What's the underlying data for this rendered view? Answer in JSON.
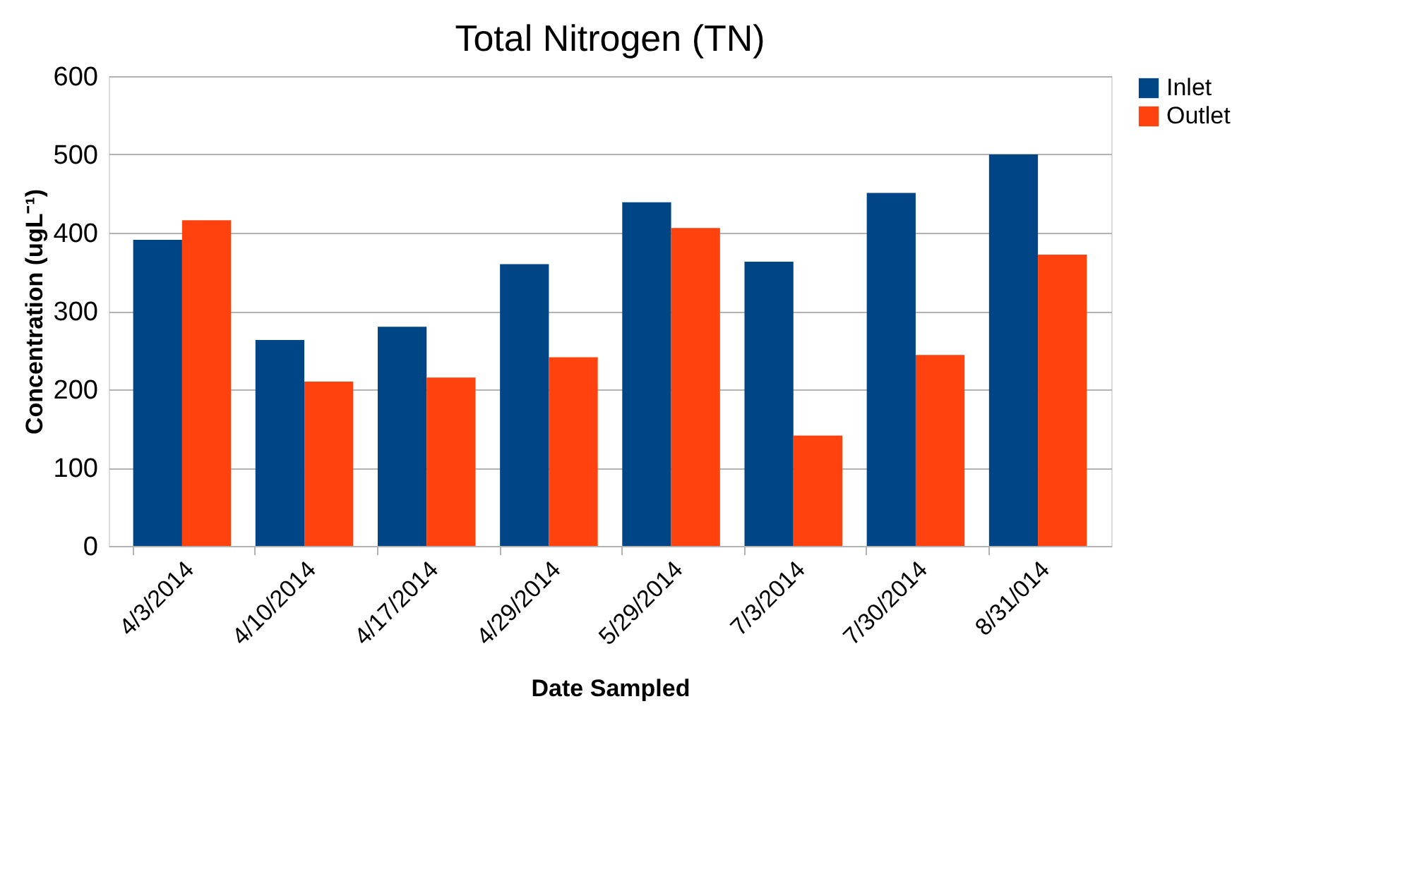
{
  "chart_data": {
    "type": "bar",
    "title": "Total Nitrogen (TN)",
    "xlabel": "Date Sampled",
    "ylabel": "Concentration (ugL⁻¹)",
    "categories": [
      "4/3/2014",
      "4/10/2014",
      "4/17/2014",
      "4/29/2014",
      "5/29/2014",
      "7/3/2014",
      "7/30/2014",
      "8/31/014"
    ],
    "series": [
      {
        "name": "Inlet",
        "color": "#004586",
        "values": [
          391,
          263,
          280,
          360,
          439,
          363,
          451,
          500
        ]
      },
      {
        "name": "Outlet",
        "color": "#ff420e",
        "values": [
          416,
          210,
          215,
          241,
          406,
          141,
          244,
          372
        ]
      }
    ],
    "ylim": [
      0,
      600
    ],
    "yticks": [
      0,
      100,
      200,
      300,
      400,
      500,
      600
    ],
    "grid": "y",
    "legend": "right"
  }
}
